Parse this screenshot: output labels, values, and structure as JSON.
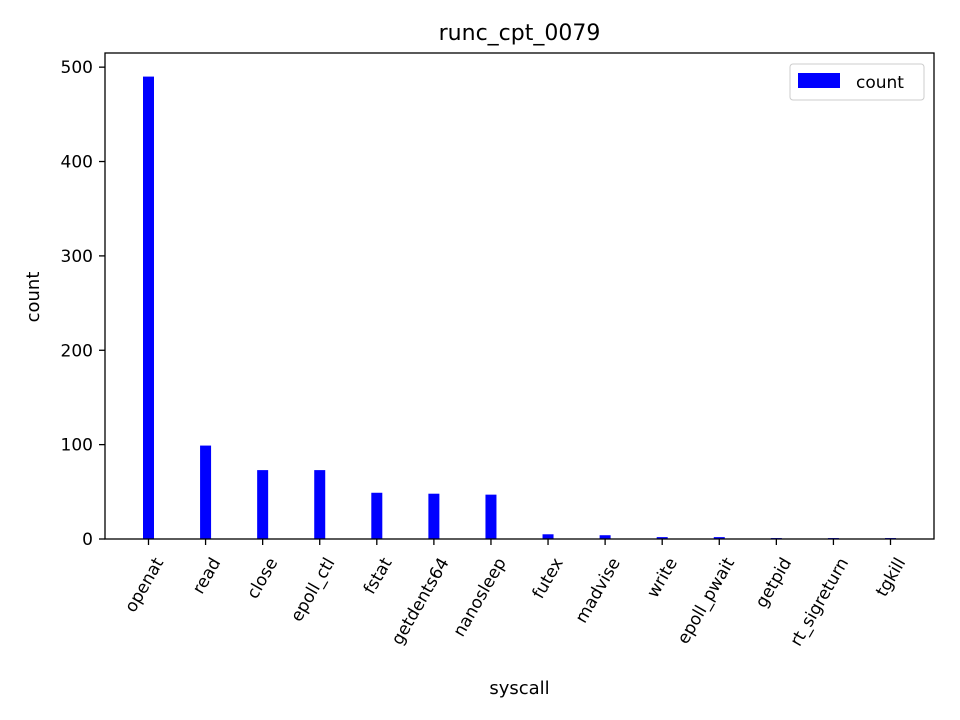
{
  "chart_data": {
    "type": "bar",
    "title": "runc_cpt_0079",
    "xlabel": "syscall",
    "ylabel": "count",
    "categories": [
      "openat",
      "read",
      "close",
      "epoll_ctl",
      "fstat",
      "getdents64",
      "nanosleep",
      "futex",
      "madvise",
      "write",
      "epoll_pwait",
      "getpid",
      "rt_sigreturn",
      "tgkill"
    ],
    "series": [
      {
        "name": "count",
        "values": [
          490,
          99,
          73,
          73,
          49,
          48,
          47,
          5,
          4,
          2,
          2,
          1,
          1,
          1
        ],
        "color": "#0000ff"
      }
    ],
    "ylim": [
      0,
      515
    ],
    "yticks": [
      0,
      100,
      200,
      300,
      400,
      500
    ],
    "grid": false,
    "legend_position": "top-right"
  }
}
